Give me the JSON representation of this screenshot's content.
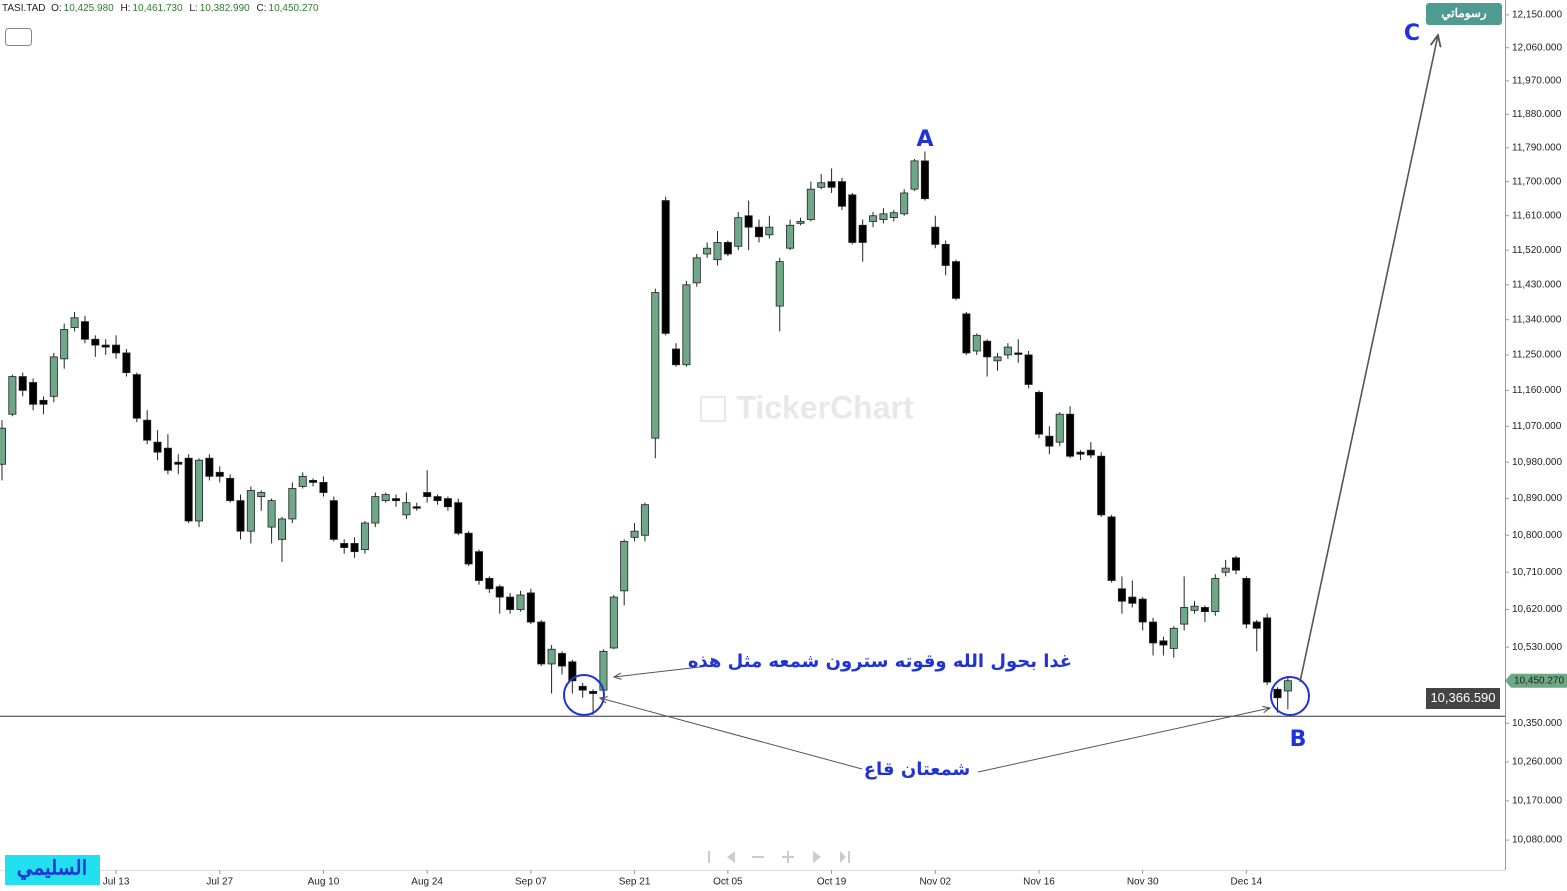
{
  "chart_data": {
    "type": "candlestick",
    "title": "TASI.TAD",
    "header": [
      {
        "label": "O:",
        "value": "10,425.980"
      },
      {
        "label": "H:",
        "value": "10,461.730"
      },
      {
        "label": "L:",
        "value": "10,382.990"
      },
      {
        "label": "C:",
        "value": "10,450.270"
      }
    ],
    "log_scale": true,
    "up_color": "#6fa886",
    "down_color": "#000000",
    "ylim": [
      10012,
      12191
    ],
    "yticks": [
      {
        "value": 12150,
        "label": "12,150.000"
      },
      {
        "value": 12060,
        "label": "12,060.000"
      },
      {
        "value": 11970,
        "label": "11,970.000"
      },
      {
        "value": 11880,
        "label": "11,880.000"
      },
      {
        "value": 11790,
        "label": "11,790.000"
      },
      {
        "value": 11700,
        "label": "11,700.000"
      },
      {
        "value": 11610,
        "label": "11,610.000"
      },
      {
        "value": 11520,
        "label": "11,520.000"
      },
      {
        "value": 11430,
        "label": "11,430.000"
      },
      {
        "value": 11340,
        "label": "11,340.000"
      },
      {
        "value": 11250,
        "label": "11,250.000"
      },
      {
        "value": 11160,
        "label": "11,160.000"
      },
      {
        "value": 11070,
        "label": "11,070.000"
      },
      {
        "value": 10980,
        "label": "10,980.000"
      },
      {
        "value": 10890,
        "label": "10,890.000"
      },
      {
        "value": 10800,
        "label": "10,800.000"
      },
      {
        "value": 10710,
        "label": "10,710.000"
      },
      {
        "value": 10620,
        "label": "10,620.000"
      },
      {
        "value": 10530,
        "label": "10,530.000"
      },
      {
        "value": 10350,
        "label": "10,350.000"
      },
      {
        "value": 10260,
        "label": "10,260.000"
      },
      {
        "value": 10170,
        "label": "10,170.000"
      },
      {
        "value": 10080,
        "label": "10,080.000"
      }
    ],
    "last_price": {
      "value": 10450.27,
      "label": "10,450.270"
    },
    "crosshair": {
      "value": 10366.59,
      "label": "10,366.590"
    },
    "categories": [
      null,
      null,
      null,
      null,
      null,
      null,
      null,
      null,
      null,
      null,
      null,
      "Jul 13",
      null,
      null,
      null,
      null,
      null,
      null,
      null,
      null,
      null,
      "Jul 27",
      null,
      null,
      null,
      null,
      null,
      null,
      null,
      null,
      null,
      "Aug 10",
      null,
      null,
      null,
      null,
      null,
      null,
      null,
      null,
      null,
      "Aug 24",
      null,
      null,
      null,
      null,
      null,
      null,
      null,
      null,
      null,
      "Sep 07",
      null,
      null,
      null,
      null,
      null,
      null,
      null,
      null,
      null,
      "Sep 21",
      null,
      null,
      null,
      null,
      null,
      null,
      null,
      null,
      "Oct 05",
      null,
      null,
      null,
      null,
      null,
      null,
      null,
      null,
      null,
      "Oct 19",
      null,
      null,
      null,
      null,
      null,
      null,
      null,
      null,
      null,
      "Nov 02",
      null,
      null,
      null,
      null,
      null,
      null,
      null,
      null,
      null,
      "Nov 16",
      null,
      null,
      null,
      null,
      null,
      null,
      null,
      null,
      null,
      "Nov 30",
      null,
      null,
      null,
      null,
      null,
      null,
      null,
      null,
      null,
      "Dec 14",
      null,
      null,
      null,
      null
    ],
    "open": [
      10975,
      11100,
      11195,
      11180,
      11135,
      11145,
      11240,
      11320,
      11335,
      11290,
      11275,
      11275,
      11255,
      11200,
      11085,
      11030,
      11015,
      10980,
      10990,
      10835,
      10990,
      10955,
      10940,
      10885,
      10810,
      10895,
      10820,
      10790,
      10840,
      10920,
      10935,
      10930,
      10885,
      10780,
      10780,
      10765,
      10830,
      10885,
      10890,
      10850,
      10870,
      10905,
      10895,
      10890,
      10880,
      10805,
      10760,
      10695,
      10675,
      10650,
      10620,
      10660,
      10590,
      10490,
      10515,
      10495,
      10437,
      10425,
      10428,
      10528,
      10665,
      10795,
      10800,
      11040,
      11650,
      11265,
      11225,
      11435,
      11510,
      11495,
      11540,
      11530,
      11610,
      11580,
      11560,
      11375,
      11525,
      11590,
      11600,
      11685,
      11700,
      11700,
      11665,
      11585,
      11595,
      11600,
      11605,
      11615,
      11680,
      11755,
      11580,
      11535,
      11490,
      11355,
      11260,
      11285,
      11235,
      11250,
      11255,
      11250,
      11155,
      11045,
      11030,
      11100,
      11005,
      11010,
      10995,
      10845,
      10670,
      10650,
      10645,
      10590,
      10545,
      10527,
      10585,
      10618,
      10625,
      10615,
      10710,
      10745,
      10695,
      10590,
      10600,
      10430,
      10425.98
    ],
    "high": [
      11085,
      11200,
      11205,
      11190,
      11145,
      11255,
      11330,
      11360,
      11350,
      11300,
      11290,
      11300,
      11265,
      11205,
      11110,
      11060,
      11050,
      11000,
      11000,
      10990,
      11000,
      10970,
      10950,
      10900,
      10920,
      10910,
      10890,
      10845,
      10930,
      10955,
      10940,
      10945,
      10895,
      10790,
      10795,
      10835,
      10905,
      10905,
      10900,
      10905,
      10880,
      10960,
      10900,
      10895,
      10890,
      10810,
      10765,
      10700,
      10680,
      10660,
      10665,
      10670,
      10595,
      10535,
      10520,
      10500,
      10445,
      10430,
      10525,
      10655,
      10790,
      10830,
      10880,
      11420,
      11660,
      11280,
      11440,
      11510,
      11540,
      11570,
      11545,
      11620,
      11650,
      11600,
      11610,
      11500,
      11600,
      11605,
      11700,
      11720,
      11735,
      11710,
      11670,
      11600,
      11620,
      11630,
      11625,
      11680,
      11760,
      11780,
      11610,
      11545,
      11495,
      11360,
      11305,
      11290,
      11255,
      11280,
      11290,
      11260,
      11160,
      11070,
      11105,
      11120,
      11010,
      11030,
      11005,
      10850,
      10700,
      10690,
      10650,
      10600,
      10555,
      10580,
      10700,
      10640,
      10630,
      10705,
      10740,
      10750,
      10700,
      10595,
      10610,
      10435,
      10461.73
    ],
    "low": [
      10935,
      11095,
      11145,
      11110,
      11100,
      11130,
      11215,
      11310,
      11280,
      11245,
      11250,
      11240,
      11195,
      11080,
      11025,
      10985,
      10950,
      10950,
      10830,
      10820,
      10935,
      10930,
      10880,
      10790,
      10780,
      10860,
      10780,
      10735,
      10830,
      10915,
      10920,
      10895,
      10785,
      10755,
      10745,
      10755,
      10820,
      10880,
      10870,
      10840,
      10860,
      10880,
      10875,
      10860,
      10800,
      10725,
      10680,
      10660,
      10610,
      10610,
      10615,
      10585,
      10485,
      10420,
      10465,
      10420,
      10410,
      10370,
      10420,
      10525,
      10630,
      10785,
      10785,
      10990,
      11300,
      11220,
      11220,
      11425,
      11500,
      11480,
      11505,
      11520,
      11520,
      11540,
      11550,
      11310,
      11520,
      11585,
      11595,
      11680,
      11670,
      11625,
      11535,
      11490,
      11580,
      11590,
      11595,
      11610,
      11675,
      11650,
      11525,
      11455,
      11390,
      11250,
      11250,
      11195,
      11210,
      11240,
      11230,
      11165,
      11040,
      11000,
      11020,
      10990,
      10985,
      10990,
      10845,
      10685,
      10610,
      10625,
      10570,
      10510,
      10510,
      10505,
      10570,
      10610,
      10590,
      10605,
      10700,
      10705,
      10575,
      10520,
      10440,
      10375,
      10382.99
    ],
    "close": [
      11065,
      11195,
      11160,
      11125,
      11125,
      11245,
      11315,
      11345,
      11290,
      11275,
      11270,
      11255,
      11205,
      11090,
      11035,
      11005,
      10960,
      10975,
      10835,
      10985,
      10945,
      10945,
      10885,
      10810,
      10910,
      10905,
      10885,
      10840,
      10915,
      10945,
      10930,
      10905,
      10790,
      10770,
      10760,
      10830,
      10895,
      10900,
      10885,
      10880,
      10868,
      10895,
      10885,
      10870,
      10805,
      10730,
      10690,
      10670,
      10650,
      10620,
      10655,
      10590,
      10490,
      10525,
      10485,
      10450,
      10428,
      10420,
      10520,
      10650,
      10785,
      10810,
      10875,
      11410,
      11305,
      11225,
      11430,
      11500,
      11525,
      11540,
      11510,
      11605,
      11580,
      11555,
      11580,
      11490,
      11585,
      11595,
      11680,
      11697,
      11685,
      11635,
      11540,
      11540,
      11610,
      11615,
      11618,
      11670,
      11755,
      11655,
      11535,
      11480,
      11395,
      11255,
      11300,
      11245,
      11245,
      11270,
      11252,
      11175,
      11050,
      11020,
      11100,
      10995,
      11000,
      10998,
      10850,
      10690,
      10640,
      10635,
      10590,
      10540,
      10535,
      10575,
      10625,
      10628,
      10615,
      10695,
      10720,
      10715,
      10585,
      10575,
      10447,
      10410,
      10450.27
    ],
    "annotations": {
      "peak": "A",
      "bottom": "B",
      "target": "C",
      "forecast_note": "غدا بحول الله وقوته سترون شمعه مثل هذه",
      "bottoms_note": "شمعتان قاع"
    },
    "author": "السليمي",
    "logo": "رسوماتي",
    "watermark": "TickerChart"
  }
}
